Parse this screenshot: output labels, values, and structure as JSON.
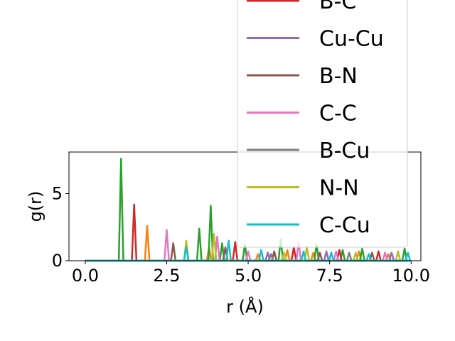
{
  "chart_data": {
    "type": "line",
    "title": "",
    "xlabel": "r (Å)",
    "ylabel": "g(r)",
    "xlim": [
      -0.5,
      10.3
    ],
    "ylim": [
      0,
      8.1
    ],
    "xticks": [
      0.0,
      2.5,
      5.0,
      7.5,
      10.0
    ],
    "xtick_labels": [
      "0.0",
      "2.5",
      "5.0",
      "7.5",
      "10.0"
    ],
    "yticks": [
      0,
      5
    ],
    "ytick_labels": [
      "0",
      "5"
    ],
    "grid": false,
    "legend_position": "upper-right",
    "legend_entries_visible": [
      "B-C",
      "Cu-Cu",
      "B-N",
      "C-C",
      "B-Cu",
      "N-N",
      "C-Cu"
    ],
    "series": [
      {
        "color": "#ff7f0e",
        "peaks": [
          [
            1.9,
            2.6
          ],
          [
            3.8,
            1.0
          ],
          [
            5.3,
            0.5
          ],
          [
            6.2,
            0.8
          ],
          [
            7.0,
            0.6
          ],
          [
            8.4,
            0.7
          ],
          [
            9.3,
            0.5
          ]
        ]
      },
      {
        "color": "#2ca02c",
        "peaks": [
          [
            1.1,
            7.6
          ],
          [
            3.5,
            2.4
          ],
          [
            3.85,
            4.1
          ],
          [
            4.2,
            1.3
          ],
          [
            4.9,
            1.2
          ],
          [
            6.0,
            1.6
          ],
          [
            7.1,
            1.2
          ],
          [
            7.9,
            0.8
          ],
          [
            8.5,
            0.9
          ],
          [
            9.8,
            0.9
          ]
        ]
      },
      {
        "name": "B-C",
        "color": "#d62728",
        "peaks": [
          [
            1.5,
            4.2
          ],
          [
            4.6,
            1.4
          ],
          [
            6.4,
            1.0
          ],
          [
            7.8,
            0.8
          ],
          [
            9.0,
            0.7
          ]
        ]
      },
      {
        "name": "Cu-Cu",
        "color": "#9467bd",
        "peaks": [
          [
            5.6,
            0.6
          ],
          [
            7.4,
            0.7
          ],
          [
            9.4,
            0.6
          ]
        ]
      },
      {
        "name": "B-N",
        "color": "#8c564b",
        "peaks": [
          [
            2.7,
            1.3
          ],
          [
            4.3,
            1.0
          ],
          [
            5.8,
            0.7
          ],
          [
            7.2,
            0.6
          ],
          [
            8.8,
            0.6
          ]
        ]
      },
      {
        "name": "C-C",
        "color": "#e377c2",
        "peaks": [
          [
            2.5,
            2.3
          ],
          [
            4.05,
            1.8
          ],
          [
            5.0,
            0.7
          ],
          [
            6.55,
            1.4
          ],
          [
            7.7,
            0.7
          ],
          [
            9.2,
            0.6
          ]
        ]
      },
      {
        "name": "B-Cu",
        "color": "#7f7f7f",
        "peaks": [
          [
            5.7,
            0.5
          ],
          [
            8.1,
            0.6
          ]
        ]
      },
      {
        "name": "N-N",
        "color": "#bcbd22",
        "peaks": [
          [
            3.1,
            1.5
          ],
          [
            3.95,
            2.0
          ],
          [
            6.1,
            0.6
          ],
          [
            6.8,
            1.0
          ],
          [
            8.3,
            0.6
          ],
          [
            9.6,
            0.7
          ]
        ]
      },
      {
        "name": "C-Cu",
        "color": "#17becf",
        "peaks": [
          [
            3.1,
            1.0
          ],
          [
            4.4,
            1.5
          ],
          [
            5.4,
            0.8
          ],
          [
            6.7,
            0.7
          ],
          [
            7.55,
            0.6
          ],
          [
            8.7,
            0.5
          ],
          [
            9.9,
            0.6
          ]
        ]
      }
    ]
  }
}
